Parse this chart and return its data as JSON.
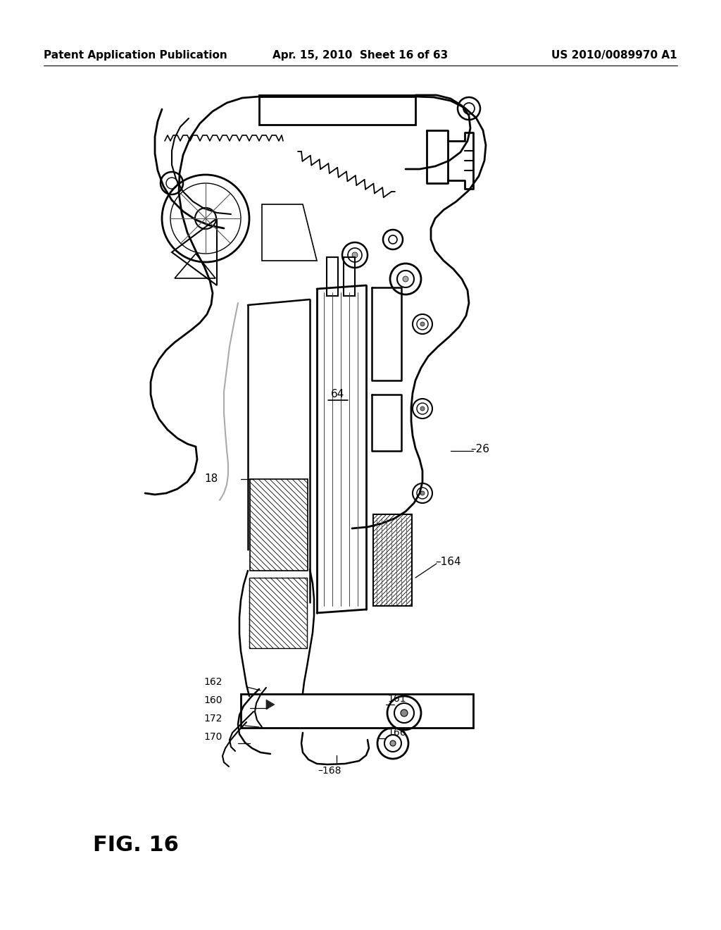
{
  "background_color": "#ffffff",
  "header_left": "Patent Application Publication",
  "header_center": "Apr. 15, 2010  Sheet 16 of 63",
  "header_right": "US 2010/0089970 A1",
  "figure_label": "FIG. 16",
  "line_color": "#000000",
  "line_width": 1.5,
  "header_fontsize": 11,
  "label_fontsize": 11
}
